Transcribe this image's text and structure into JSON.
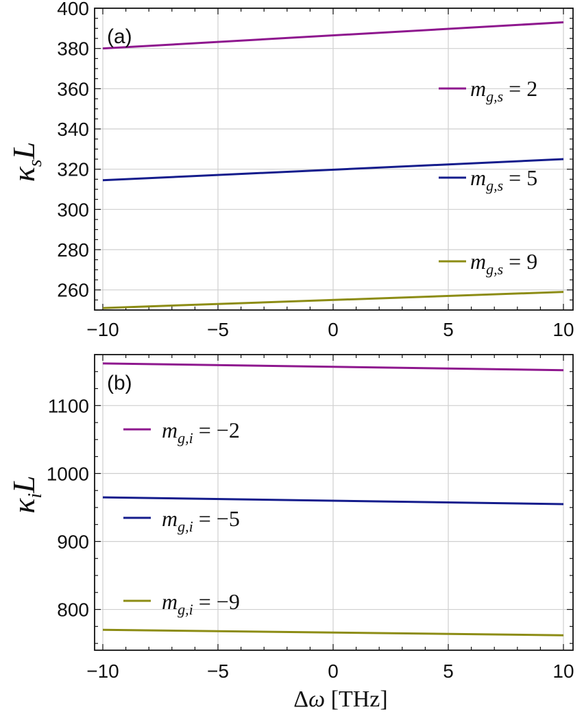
{
  "chart_data": [
    {
      "type": "line",
      "panel_label": "(a)",
      "ylabel": {
        "main": "κ",
        "sub": "s",
        "tail": "L"
      },
      "xlim": [
        -10,
        10
      ],
      "ylim": [
        250,
        400
      ],
      "xticks": [
        -10,
        -5,
        0,
        5,
        10
      ],
      "xtick_labels": [
        "−10",
        "−5",
        "0",
        "5",
        "10"
      ],
      "yticks": [
        260,
        280,
        300,
        320,
        340,
        360,
        380,
        400
      ],
      "ytick_labels": [
        "260",
        "280",
        "300",
        "320",
        "340",
        "360",
        "380",
        "400"
      ],
      "grid": true,
      "legend": "inline, right side",
      "series": [
        {
          "name": "m_{g,s} = 2",
          "label": {
            "m": "m",
            "sub": "g,s",
            "eq": " = 2"
          },
          "color": "#8e178e",
          "x": [
            -10,
            10
          ],
          "y": [
            380,
            393
          ]
        },
        {
          "name": "m_{g,s} = 5",
          "label": {
            "m": "m",
            "sub": "g,s",
            "eq": " = 5"
          },
          "color": "#141c8c",
          "x": [
            -10,
            10
          ],
          "y": [
            314.5,
            325
          ]
        },
        {
          "name": "m_{g,s} = 9",
          "label": {
            "m": "m",
            "sub": "g,s",
            "eq": " = 9"
          },
          "color": "#8c8c14",
          "x": [
            -10,
            10
          ],
          "y": [
            251,
            259
          ]
        }
      ]
    },
    {
      "type": "line",
      "panel_label": "(b)",
      "ylabel": {
        "main": "κ",
        "sub": "i",
        "tail": "L"
      },
      "xlabel": {
        "delta": "Δ",
        "omega": "ω",
        "unit": "[THz]"
      },
      "xlim": [
        -10,
        10
      ],
      "ylim": [
        740,
        1175
      ],
      "xticks": [
        -10,
        -5,
        0,
        5,
        10
      ],
      "xtick_labels": [
        "−10",
        "−5",
        "0",
        "5",
        "10"
      ],
      "yticks": [
        800,
        900,
        1000,
        1100
      ],
      "ytick_labels": [
        "800",
        "900",
        "1000",
        "1100"
      ],
      "grid": true,
      "legend": "inline, left side",
      "series": [
        {
          "name": "m_{g,i} = −2",
          "label": {
            "m": "m",
            "sub": "g,i",
            "eq": " = −2"
          },
          "color": "#8e178e",
          "x": [
            -10,
            10
          ],
          "y": [
            1162,
            1152
          ]
        },
        {
          "name": "m_{g,i} = −5",
          "label": {
            "m": "m",
            "sub": "g,i",
            "eq": " = −5"
          },
          "color": "#141c8c",
          "x": [
            -10,
            10
          ],
          "y": [
            965,
            955
          ]
        },
        {
          "name": "m_{g,i} = −9",
          "label": {
            "m": "m",
            "sub": "g,i",
            "eq": " = −9"
          },
          "color": "#8c8c14",
          "x": [
            -10,
            10
          ],
          "y": [
            770,
            762
          ]
        }
      ]
    }
  ]
}
